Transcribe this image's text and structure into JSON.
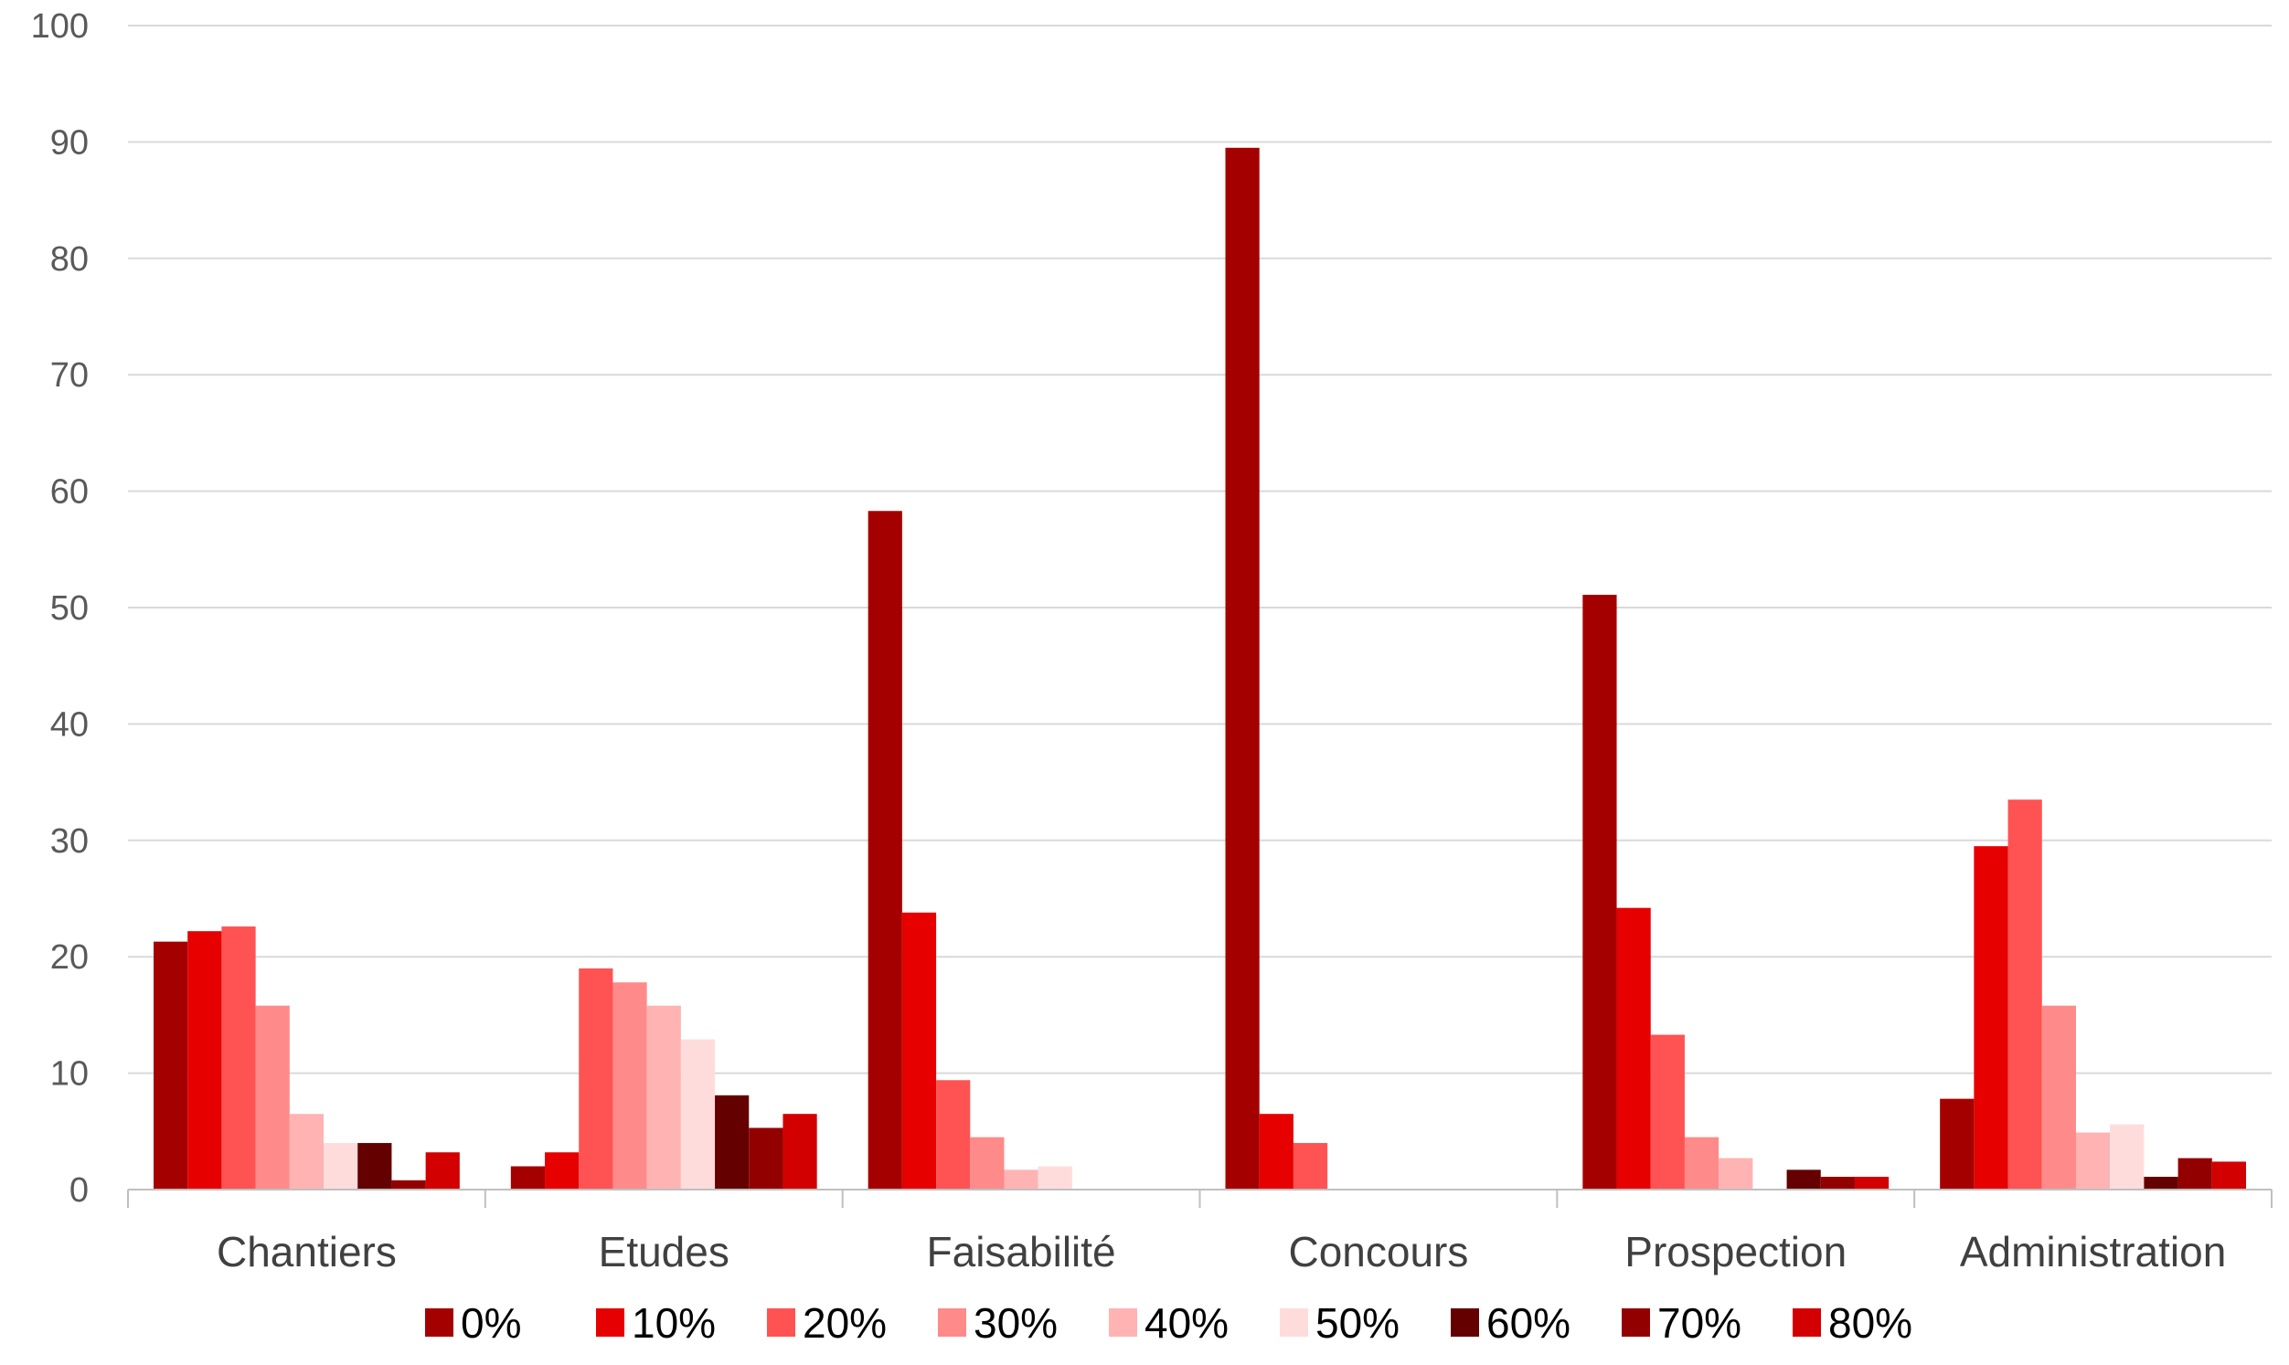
{
  "chart_data": {
    "type": "bar",
    "title": "",
    "xlabel": "",
    "ylabel": "",
    "ylim": [
      0,
      100
    ],
    "y_ticks": [
      "0",
      "10",
      "20",
      "30",
      "40",
      "50",
      "60",
      "70",
      "80",
      "90",
      "100"
    ],
    "grid": true,
    "legend_position": "bottom",
    "categories": [
      "Chantiers",
      "Etudes",
      "Faisabilité",
      "Concours",
      "Prospection",
      "Administration"
    ],
    "series": [
      {
        "name": "0%",
        "color": "#A50000",
        "values": [
          21.3,
          2.0,
          58.3,
          89.5,
          51.1,
          7.8
        ]
      },
      {
        "name": "10%",
        "color": "#E60000",
        "values": [
          22.2,
          3.2,
          23.8,
          6.5,
          24.2,
          29.5
        ]
      },
      {
        "name": "20%",
        "color": "#FF5252",
        "values": [
          22.6,
          19.0,
          9.4,
          4.0,
          13.3,
          33.5
        ]
      },
      {
        "name": "30%",
        "color": "#FF8A8A",
        "values": [
          15.8,
          17.8,
          4.5,
          0,
          4.5,
          15.8
        ]
      },
      {
        "name": "40%",
        "color": "#FFB3B3",
        "values": [
          6.5,
          15.8,
          1.7,
          0,
          2.7,
          4.9
        ]
      },
      {
        "name": "50%",
        "color": "#FFDCDC",
        "values": [
          4.0,
          12.9,
          2.0,
          0,
          0,
          5.6
        ]
      },
      {
        "name": "60%",
        "color": "#640000",
        "values": [
          4.0,
          8.1,
          0,
          0,
          1.7,
          1.1
        ]
      },
      {
        "name": "70%",
        "color": "#930000",
        "values": [
          0.8,
          5.3,
          0,
          0,
          1.1,
          2.7
        ]
      },
      {
        "name": "80%",
        "color": "#D20000",
        "values": [
          3.2,
          6.5,
          0,
          0,
          1.1,
          2.4
        ]
      }
    ]
  }
}
